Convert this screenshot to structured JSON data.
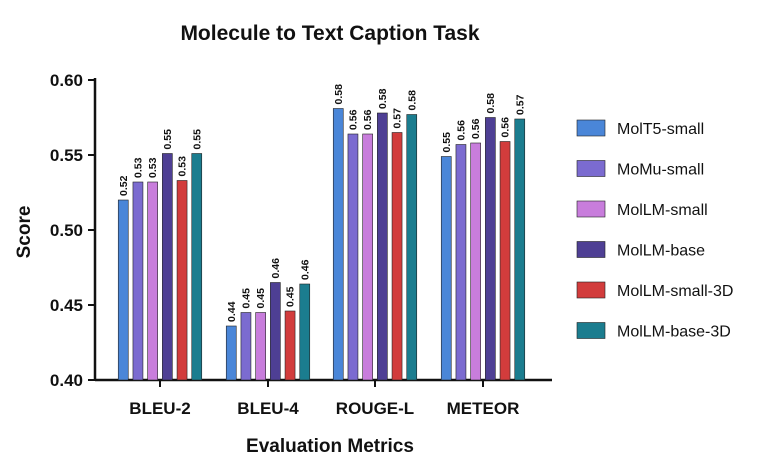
{
  "chart_data": {
    "type": "bar",
    "title": "Molecule to Text Caption Task",
    "xlabel": "Evaluation Metrics",
    "ylabel": "Score",
    "ylim": [
      0.4,
      0.6
    ],
    "yticks": [
      "0.40",
      "0.45",
      "0.50",
      "0.55",
      "0.60"
    ],
    "grid": false,
    "legend_position": "right",
    "categories": [
      "BLEU-2",
      "BLEU-4",
      "ROUGE-L",
      "METEOR"
    ],
    "series": [
      {
        "name": "MolT5-small",
        "color": "#4a86d8",
        "values": [
          0.52,
          0.436,
          0.581,
          0.549
        ],
        "labels": [
          "0.52",
          "0.44",
          "0.58",
          "0.55"
        ]
      },
      {
        "name": "MoMu-small",
        "color": "#7b6bd0",
        "values": [
          0.532,
          0.445,
          0.564,
          0.557
        ],
        "labels": [
          "0.53",
          "0.45",
          "0.56",
          "0.56"
        ]
      },
      {
        "name": "MolLM-small",
        "color": "#c87ddc",
        "values": [
          0.532,
          0.445,
          0.564,
          0.558
        ],
        "labels": [
          "0.53",
          "0.45",
          "0.56",
          "0.56"
        ]
      },
      {
        "name": "MolLM-base",
        "color": "#4e3f94",
        "values": [
          0.551,
          0.465,
          0.578,
          0.575
        ],
        "labels": [
          "0.55",
          "0.46",
          "0.58",
          "0.58"
        ]
      },
      {
        "name": "MolLM-small-3D",
        "color": "#d23c3c",
        "values": [
          0.533,
          0.446,
          0.565,
          0.559
        ],
        "labels": [
          "0.53",
          "0.45",
          "0.57",
          "0.56"
        ]
      },
      {
        "name": "MolLM-base-3D",
        "color": "#1b7d8f",
        "values": [
          0.551,
          0.464,
          0.577,
          0.574
        ],
        "labels": [
          "0.55",
          "0.46",
          "0.58",
          "0.57"
        ]
      }
    ]
  }
}
